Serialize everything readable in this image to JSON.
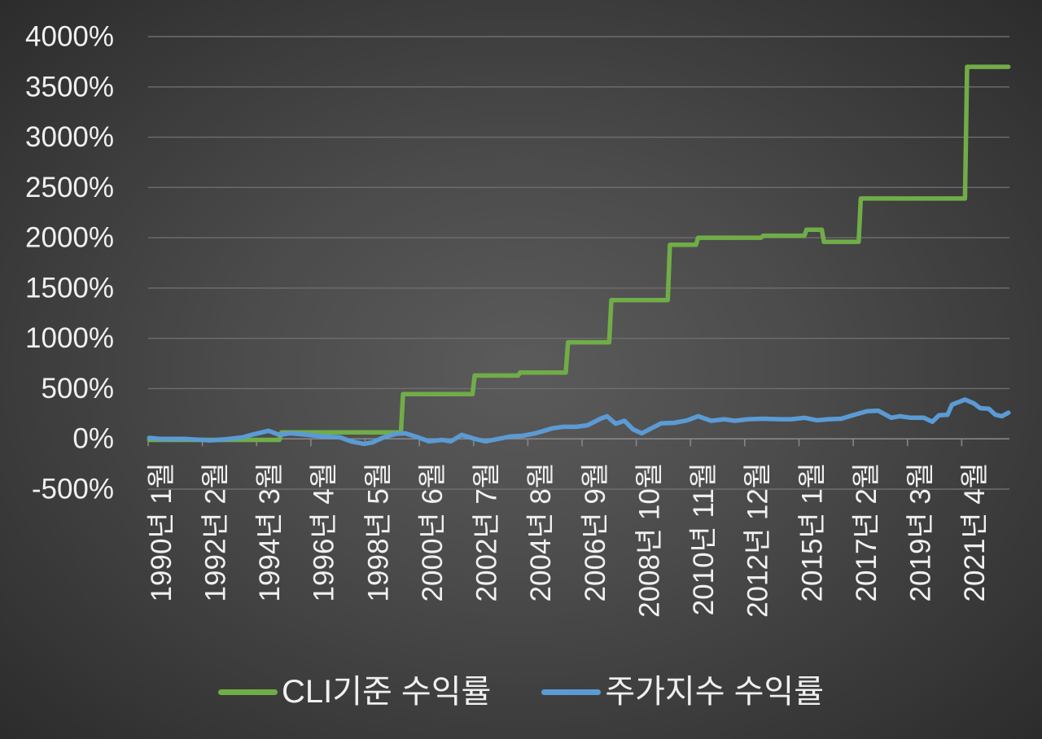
{
  "chart_data": {
    "type": "line",
    "x_range": [
      "1990-01",
      "2023-01"
    ],
    "x_tick_labels": [
      "1990년 1월",
      "1992년 2월",
      "1994년 3월",
      "1996년 4월",
      "1998년 5월",
      "2000년 6월",
      "2002년 7월",
      "2004년 8월",
      "2006년 9월",
      "2008년 10월",
      "2010년 11월",
      "2012년 12월",
      "2015년 1월",
      "2017년 2월",
      "2019년 3월",
      "2021년 4월"
    ],
    "ylim": [
      -500,
      4000
    ],
    "y_tick_labels": [
      "-500%",
      "0%",
      "500%",
      "1000%",
      "1500%",
      "2000%",
      "2500%",
      "3000%",
      "3500%",
      "4000%"
    ],
    "grid": true,
    "legend": "bottom",
    "series": [
      {
        "name": "CLI기준 수익률",
        "color": "#70ad47",
        "points": [
          [
            "1990-01",
            -10
          ],
          [
            "1995-01",
            -10
          ],
          [
            "1995-02",
            65
          ],
          [
            "1999-09",
            65
          ],
          [
            "1999-10",
            445
          ],
          [
            "2002-06",
            445
          ],
          [
            "2002-07",
            630
          ],
          [
            "2004-03",
            630
          ],
          [
            "2004-04",
            660
          ],
          [
            "2006-01",
            660
          ],
          [
            "2006-02",
            960
          ],
          [
            "2007-09",
            960
          ],
          [
            "2007-10",
            1380
          ],
          [
            "2009-12",
            1380
          ],
          [
            "2010-01",
            1930
          ],
          [
            "2011-01",
            1930
          ],
          [
            "2011-02",
            2000
          ],
          [
            "2013-07",
            2000
          ],
          [
            "2013-08",
            2020
          ],
          [
            "2015-03",
            2020
          ],
          [
            "2015-04",
            2080
          ],
          [
            "2015-11",
            2080
          ],
          [
            "2015-12",
            1960
          ],
          [
            "2017-04",
            1960
          ],
          [
            "2017-05",
            2390
          ],
          [
            "2021-05",
            2390
          ],
          [
            "2021-06",
            3700
          ],
          [
            "2023-01",
            3700
          ]
        ]
      },
      {
        "name": "주가지수 수익률",
        "color": "#5b9bd5",
        "points": [
          [
            "1990-01",
            10
          ],
          [
            "1990-06",
            0
          ],
          [
            "1991-05",
            0
          ],
          [
            "1992-05",
            -15
          ],
          [
            "1992-12",
            -5
          ],
          [
            "1993-08",
            15
          ],
          [
            "1994-01",
            45
          ],
          [
            "1994-08",
            80
          ],
          [
            "1995-01",
            40
          ],
          [
            "1995-06",
            55
          ],
          [
            "1996-02",
            40
          ],
          [
            "1996-09",
            25
          ],
          [
            "1997-05",
            15
          ],
          [
            "1997-10",
            -25
          ],
          [
            "1998-04",
            -50
          ],
          [
            "1998-08",
            -35
          ],
          [
            "1999-01",
            15
          ],
          [
            "1999-07",
            50
          ],
          [
            "1999-11",
            55
          ],
          [
            "2000-05",
            15
          ],
          [
            "2000-10",
            -25
          ],
          [
            "2001-04",
            -10
          ],
          [
            "2001-08",
            -25
          ],
          [
            "2002-01",
            40
          ],
          [
            "2002-07",
            0
          ],
          [
            "2002-12",
            -25
          ],
          [
            "2003-06",
            0
          ],
          [
            "2003-12",
            25
          ],
          [
            "2004-05",
            30
          ],
          [
            "2004-11",
            55
          ],
          [
            "2005-07",
            105
          ],
          [
            "2005-12",
            120
          ],
          [
            "2006-06",
            120
          ],
          [
            "2006-11",
            135
          ],
          [
            "2007-05",
            200
          ],
          [
            "2007-08",
            225
          ],
          [
            "2007-12",
            150
          ],
          [
            "2008-04",
            180
          ],
          [
            "2008-08",
            95
          ],
          [
            "2008-12",
            55
          ],
          [
            "2009-04",
            100
          ],
          [
            "2009-09",
            155
          ],
          [
            "2010-03",
            160
          ],
          [
            "2010-09",
            185
          ],
          [
            "2011-02",
            225
          ],
          [
            "2011-08",
            180
          ],
          [
            "2012-02",
            195
          ],
          [
            "2012-07",
            180
          ],
          [
            "2013-01",
            195
          ],
          [
            "2013-08",
            200
          ],
          [
            "2014-04",
            195
          ],
          [
            "2014-09",
            195
          ],
          [
            "2015-03",
            210
          ],
          [
            "2015-09",
            185
          ],
          [
            "2016-02",
            195
          ],
          [
            "2016-08",
            200
          ],
          [
            "2017-02",
            240
          ],
          [
            "2017-08",
            275
          ],
          [
            "2018-01",
            280
          ],
          [
            "2018-07",
            210
          ],
          [
            "2018-11",
            225
          ],
          [
            "2019-04",
            210
          ],
          [
            "2019-10",
            210
          ],
          [
            "2020-02",
            170
          ],
          [
            "2020-05",
            235
          ],
          [
            "2020-09",
            240
          ],
          [
            "2020-11",
            340
          ],
          [
            "2021-05",
            390
          ],
          [
            "2021-09",
            355
          ],
          [
            "2021-12",
            305
          ],
          [
            "2022-04",
            300
          ],
          [
            "2022-07",
            240
          ],
          [
            "2022-10",
            225
          ],
          [
            "2023-01",
            260
          ]
        ]
      }
    ]
  }
}
